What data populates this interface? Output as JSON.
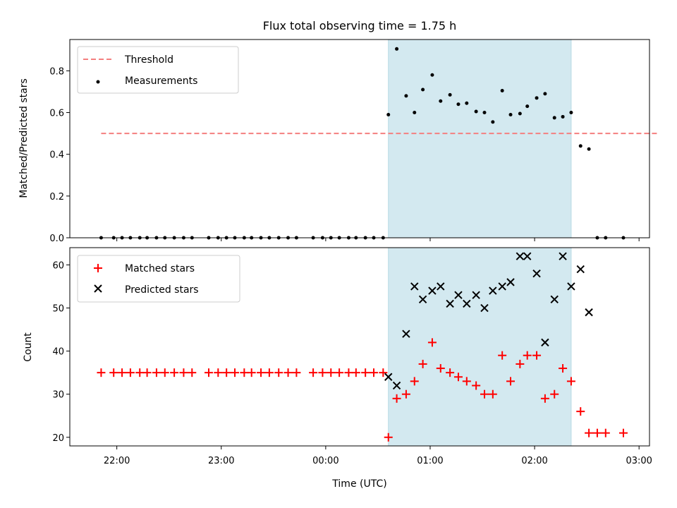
{
  "chart_data": {
    "title": "Flux total observing time = 1.75 h",
    "xlabel": "Time (UTC)",
    "x_ticks": [
      "22:00",
      "23:00",
      "00:00",
      "01:00",
      "02:00",
      "03:00"
    ],
    "x_range_hours": [
      21.55,
      27.1
    ],
    "highlight_span_hours": [
      24.6,
      26.35
    ],
    "highlight_color": "#d3e9f0",
    "panels": [
      {
        "type": "scatter",
        "ylabel": "Matched/Predicted stars",
        "ylim": [
          0,
          0.95
        ],
        "y_ticks": [
          0.0,
          0.2,
          0.4,
          0.6,
          0.8
        ],
        "legend": {
          "position": "upper-left",
          "entries": [
            "Threshold",
            "Measurements"
          ]
        },
        "threshold": {
          "name": "Threshold",
          "value": 0.5,
          "x_range": [
            21.85,
            27.18
          ],
          "color": "#f47f7f",
          "style": "dashed"
        },
        "series": [
          {
            "name": "Measurements",
            "marker": "dot",
            "color": "#000000",
            "x": [
              21.85,
              21.97,
              22.05,
              22.13,
              22.22,
              22.29,
              22.38,
              22.46,
              22.55,
              22.64,
              22.72,
              22.88,
              22.97,
              23.05,
              23.13,
              23.22,
              23.29,
              23.38,
              23.46,
              23.55,
              23.64,
              23.72,
              23.88,
              23.97,
              24.05,
              24.13,
              24.22,
              24.29,
              24.38,
              24.46,
              24.55,
              24.6,
              24.68,
              24.77,
              24.85,
              24.93,
              25.02,
              25.1,
              25.19,
              25.27,
              25.35,
              25.44,
              25.52,
              25.6,
              25.69,
              25.77,
              25.86,
              25.93,
              26.02,
              26.1,
              26.19,
              26.27,
              26.35,
              26.44,
              26.52,
              26.6,
              26.68,
              26.85
            ],
            "values": [
              0,
              0,
              0,
              0,
              0,
              0,
              0,
              0,
              0,
              0,
              0,
              0,
              0,
              0,
              0,
              0,
              0,
              0,
              0,
              0,
              0,
              0,
              0,
              0,
              0,
              0,
              0,
              0,
              0,
              0,
              0,
              0.59,
              0.905,
              0.68,
              0.6,
              0.71,
              0.78,
              0.655,
              0.685,
              0.64,
              0.645,
              0.605,
              0.6,
              0.555,
              0.705,
              0.59,
              0.595,
              0.63,
              0.67,
              0.69,
              0.575,
              0.58,
              0.6,
              0.44,
              0.425,
              0,
              0,
              0
            ]
          }
        ]
      },
      {
        "type": "scatter",
        "ylabel": "Count",
        "ylim": [
          18,
          64
        ],
        "y_ticks": [
          20,
          30,
          40,
          50,
          60
        ],
        "legend": {
          "position": "upper-left",
          "entries": [
            "Matched stars",
            "Predicted stars"
          ]
        },
        "series": [
          {
            "name": "Matched stars",
            "marker": "plus",
            "color": "#ff0000",
            "x": [
              21.85,
              21.97,
              22.05,
              22.13,
              22.22,
              22.29,
              22.38,
              22.46,
              22.55,
              22.64,
              22.72,
              22.88,
              22.97,
              23.05,
              23.13,
              23.22,
              23.29,
              23.38,
              23.46,
              23.55,
              23.64,
              23.72,
              23.88,
              23.97,
              24.05,
              24.13,
              24.22,
              24.29,
              24.38,
              24.46,
              24.55,
              24.6,
              24.68,
              24.77,
              24.85,
              24.93,
              25.02,
              25.1,
              25.19,
              25.27,
              25.35,
              25.44,
              25.52,
              25.6,
              25.69,
              25.77,
              25.86,
              25.93,
              26.02,
              26.1,
              26.19,
              26.27,
              26.35,
              26.44,
              26.52,
              26.6,
              26.68,
              26.85
            ],
            "values": [
              35,
              35,
              35,
              35,
              35,
              35,
              35,
              35,
              35,
              35,
              35,
              35,
              35,
              35,
              35,
              35,
              35,
              35,
              35,
              35,
              35,
              35,
              35,
              35,
              35,
              35,
              35,
              35,
              35,
              35,
              35,
              20,
              29,
              30,
              33,
              37,
              42,
              36,
              35,
              34,
              33,
              32,
              30,
              30,
              39,
              33,
              37,
              39,
              39,
              29,
              30,
              36,
              33,
              26,
              21,
              21,
              21,
              21
            ]
          },
          {
            "name": "Predicted stars",
            "marker": "x",
            "color": "#000000",
            "x": [
              24.6,
              24.68,
              24.77,
              24.85,
              24.93,
              25.02,
              25.1,
              25.19,
              25.27,
              25.35,
              25.44,
              25.52,
              25.6,
              25.69,
              25.77,
              25.86,
              25.93,
              26.02,
              26.1,
              26.19,
              26.27,
              26.35,
              26.44,
              26.52
            ],
            "values": [
              34,
              32,
              44,
              55,
              52,
              54,
              55,
              51,
              53,
              51,
              53,
              50,
              54,
              55,
              56,
              62,
              62,
              58,
              42,
              52,
              62,
              55,
              59,
              49
            ]
          }
        ]
      }
    ]
  }
}
